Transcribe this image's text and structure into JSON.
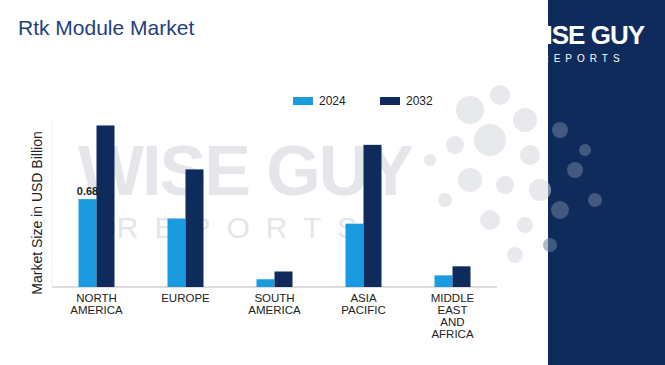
{
  "chart_data": {
    "type": "bar",
    "title": "Rtk Module Market",
    "y_label": "Market Size in USD Billion",
    "categories": [
      "NORTH AMERICA",
      "EUROPE",
      "SOUTH AMERICA",
      "ASIA PACIFIC",
      "MIDDLE EAST AND AFRICA"
    ],
    "series": [
      {
        "name": "2024",
        "color": "#1a9be0",
        "values": [
          0.68,
          0.53,
          0.06,
          0.49,
          0.09
        ],
        "value_labels": [
          "0.68",
          null,
          null,
          null,
          null
        ]
      },
      {
        "name": "2032",
        "color": "#0e2b5c",
        "values": [
          1.25,
          0.91,
          0.12,
          1.1,
          0.16
        ]
      }
    ],
    "ylim": [
      0,
      1.3
    ],
    "yticks": [
      0
    ],
    "grid": false,
    "legend": "top",
    "tick_labels": "x"
  },
  "logo": {
    "text": "WISE GUY",
    "subtext": "REPORTS"
  }
}
